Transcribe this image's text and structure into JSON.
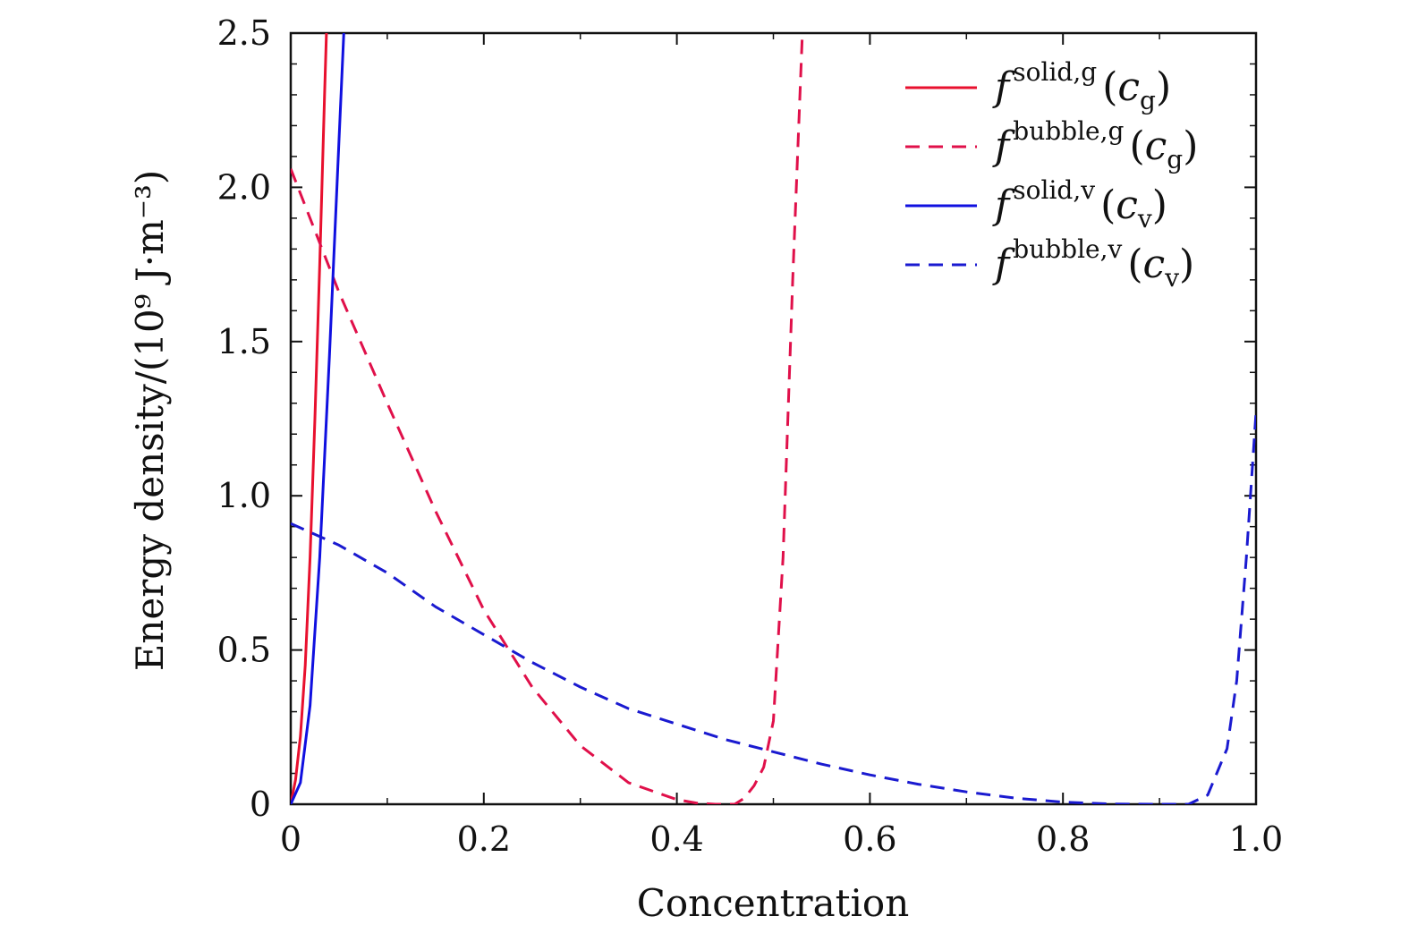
{
  "chart_data": {
    "type": "line",
    "xlabel": "Concentration",
    "ylabel": "Energy density/(10⁹ J·m⁻³)",
    "xlim": [
      0,
      1.0
    ],
    "ylim": [
      0,
      2.5
    ],
    "x_ticks": [
      {
        "value": 0,
        "label": "0"
      },
      {
        "value": 0.2,
        "label": "0.2"
      },
      {
        "value": 0.4,
        "label": "0.4"
      },
      {
        "value": 0.6,
        "label": "0.6"
      },
      {
        "value": 0.8,
        "label": "0.8"
      },
      {
        "value": 1.0,
        "label": "1.0"
      }
    ],
    "y_ticks": [
      {
        "value": 0,
        "label": "0"
      },
      {
        "value": 0.5,
        "label": "0.5"
      },
      {
        "value": 1.0,
        "label": "1.0"
      },
      {
        "value": 1.5,
        "label": "1.5"
      },
      {
        "value": 2.0,
        "label": "2.0"
      },
      {
        "value": 2.5,
        "label": "2.5"
      }
    ],
    "grid": false,
    "legend_position": "top-right",
    "series": [
      {
        "key": "solid-g",
        "legend_f": "f",
        "legend_sup": "solid,g",
        "legend_c": "c",
        "legend_sub": "g",
        "color": "#e8102e",
        "dash": "solid",
        "points": [
          [
            0,
            0
          ],
          [
            0.005,
            0.08
          ],
          [
            0.01,
            0.22
          ],
          [
            0.015,
            0.45
          ],
          [
            0.02,
            0.8
          ],
          [
            0.025,
            1.25
          ],
          [
            0.03,
            1.75
          ],
          [
            0.035,
            2.3
          ],
          [
            0.037,
            2.5
          ]
        ]
      },
      {
        "key": "bubble-g",
        "legend_f": "f",
        "legend_sup": "bubble,g",
        "legend_c": "c",
        "legend_sub": "g",
        "color": "#e0104a",
        "dash": "dashed",
        "points": [
          [
            0,
            2.06
          ],
          [
            0.05,
            1.66
          ],
          [
            0.1,
            1.3
          ],
          [
            0.15,
            0.95
          ],
          [
            0.2,
            0.63
          ],
          [
            0.25,
            0.38
          ],
          [
            0.3,
            0.19
          ],
          [
            0.35,
            0.07
          ],
          [
            0.4,
            0.015
          ],
          [
            0.42,
            0.004
          ],
          [
            0.44,
            0
          ],
          [
            0.46,
            0
          ],
          [
            0.47,
            0.02
          ],
          [
            0.48,
            0.06
          ],
          [
            0.49,
            0.12
          ],
          [
            0.5,
            0.27
          ],
          [
            0.51,
            0.8
          ],
          [
            0.52,
            1.7
          ],
          [
            0.53,
            2.5
          ]
        ]
      },
      {
        "key": "solid-v",
        "legend_f": "f",
        "legend_sup": "solid,v",
        "legend_c": "c",
        "legend_sub": "v",
        "color": "#1010e0",
        "dash": "solid",
        "points": [
          [
            0,
            0
          ],
          [
            0.01,
            0.07
          ],
          [
            0.02,
            0.32
          ],
          [
            0.03,
            0.8
          ],
          [
            0.04,
            1.45
          ],
          [
            0.05,
            2.15
          ],
          [
            0.055,
            2.5
          ]
        ]
      },
      {
        "key": "bubble-v",
        "legend_f": "f",
        "legend_sup": "bubble,v",
        "legend_c": "c",
        "legend_sub": "v",
        "color": "#1a1ad0",
        "dash": "dashed",
        "points": [
          [
            0,
            0.91
          ],
          [
            0.05,
            0.84
          ],
          [
            0.1,
            0.75
          ],
          [
            0.15,
            0.64
          ],
          [
            0.2,
            0.55
          ],
          [
            0.25,
            0.46
          ],
          [
            0.3,
            0.38
          ],
          [
            0.35,
            0.31
          ],
          [
            0.4,
            0.26
          ],
          [
            0.45,
            0.21
          ],
          [
            0.5,
            0.17
          ],
          [
            0.55,
            0.13
          ],
          [
            0.6,
            0.095
          ],
          [
            0.65,
            0.065
          ],
          [
            0.7,
            0.04
          ],
          [
            0.75,
            0.02
          ],
          [
            0.8,
            0.007
          ],
          [
            0.85,
            0.001
          ],
          [
            0.9,
            0
          ],
          [
            0.93,
            0
          ],
          [
            0.95,
            0.03
          ],
          [
            0.97,
            0.18
          ],
          [
            0.98,
            0.4
          ],
          [
            0.99,
            0.8
          ],
          [
            1.0,
            1.27
          ]
        ]
      }
    ]
  }
}
